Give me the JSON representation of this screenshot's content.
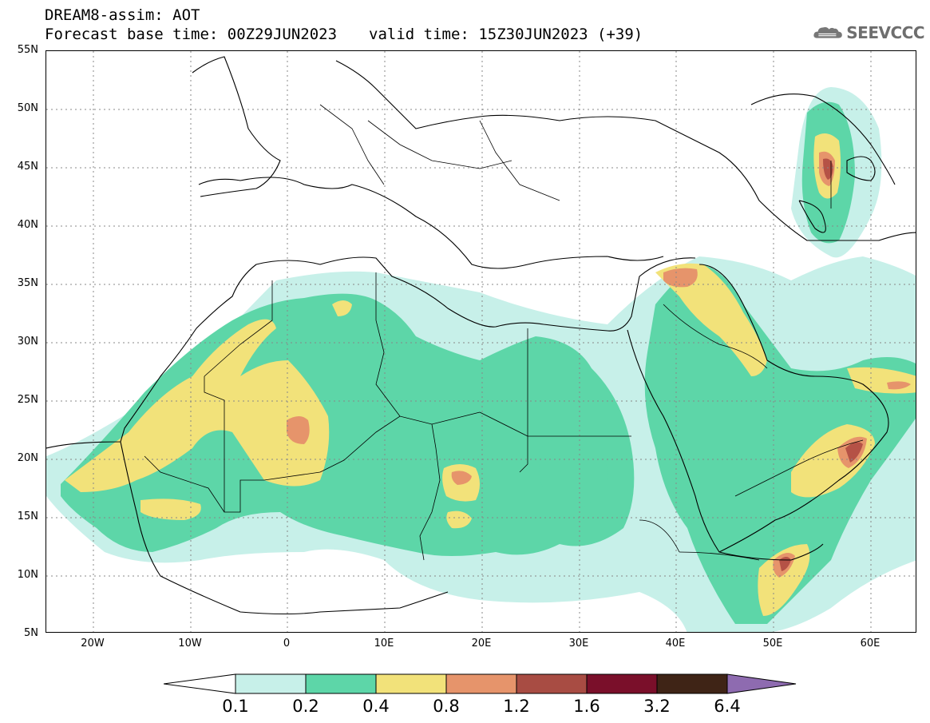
{
  "header": {
    "title_line1": "DREAM8-assim: AOT",
    "base_time": "Forecast base time: 00Z29JUN2023",
    "valid_time": "valid time: 15Z30JUN2023 (+39)"
  },
  "logo": {
    "text": "SEEVCCC",
    "icon": "cloud-icon"
  },
  "map": {
    "lat_labels": [
      "55N",
      "50N",
      "45N",
      "40N",
      "35N",
      "30N",
      "25N",
      "20N",
      "15N",
      "10N",
      "5N"
    ],
    "lon_labels": [
      "20W",
      "10W",
      "0",
      "10E",
      "20E",
      "30E",
      "40E",
      "50E",
      "60E"
    ],
    "lon_range": [
      -25,
      65
    ],
    "lat_range": [
      5,
      55
    ]
  },
  "colorbar": {
    "levels": [
      "0.1",
      "0.2",
      "0.4",
      "0.8",
      "1.2",
      "1.6",
      "3.2",
      "6.4"
    ],
    "colors": [
      "#c7f0e9",
      "#5dd6a8",
      "#f2e27a",
      "#e6946b",
      "#a84c43",
      "#7a0f2a",
      "#3f2416",
      "#8e6bb0"
    ]
  },
  "colors": {
    "c1": "#c7f0e9",
    "c2": "#5dd6a8",
    "c3": "#f2e27a",
    "c4": "#e6946b",
    "c5": "#b55246"
  }
}
